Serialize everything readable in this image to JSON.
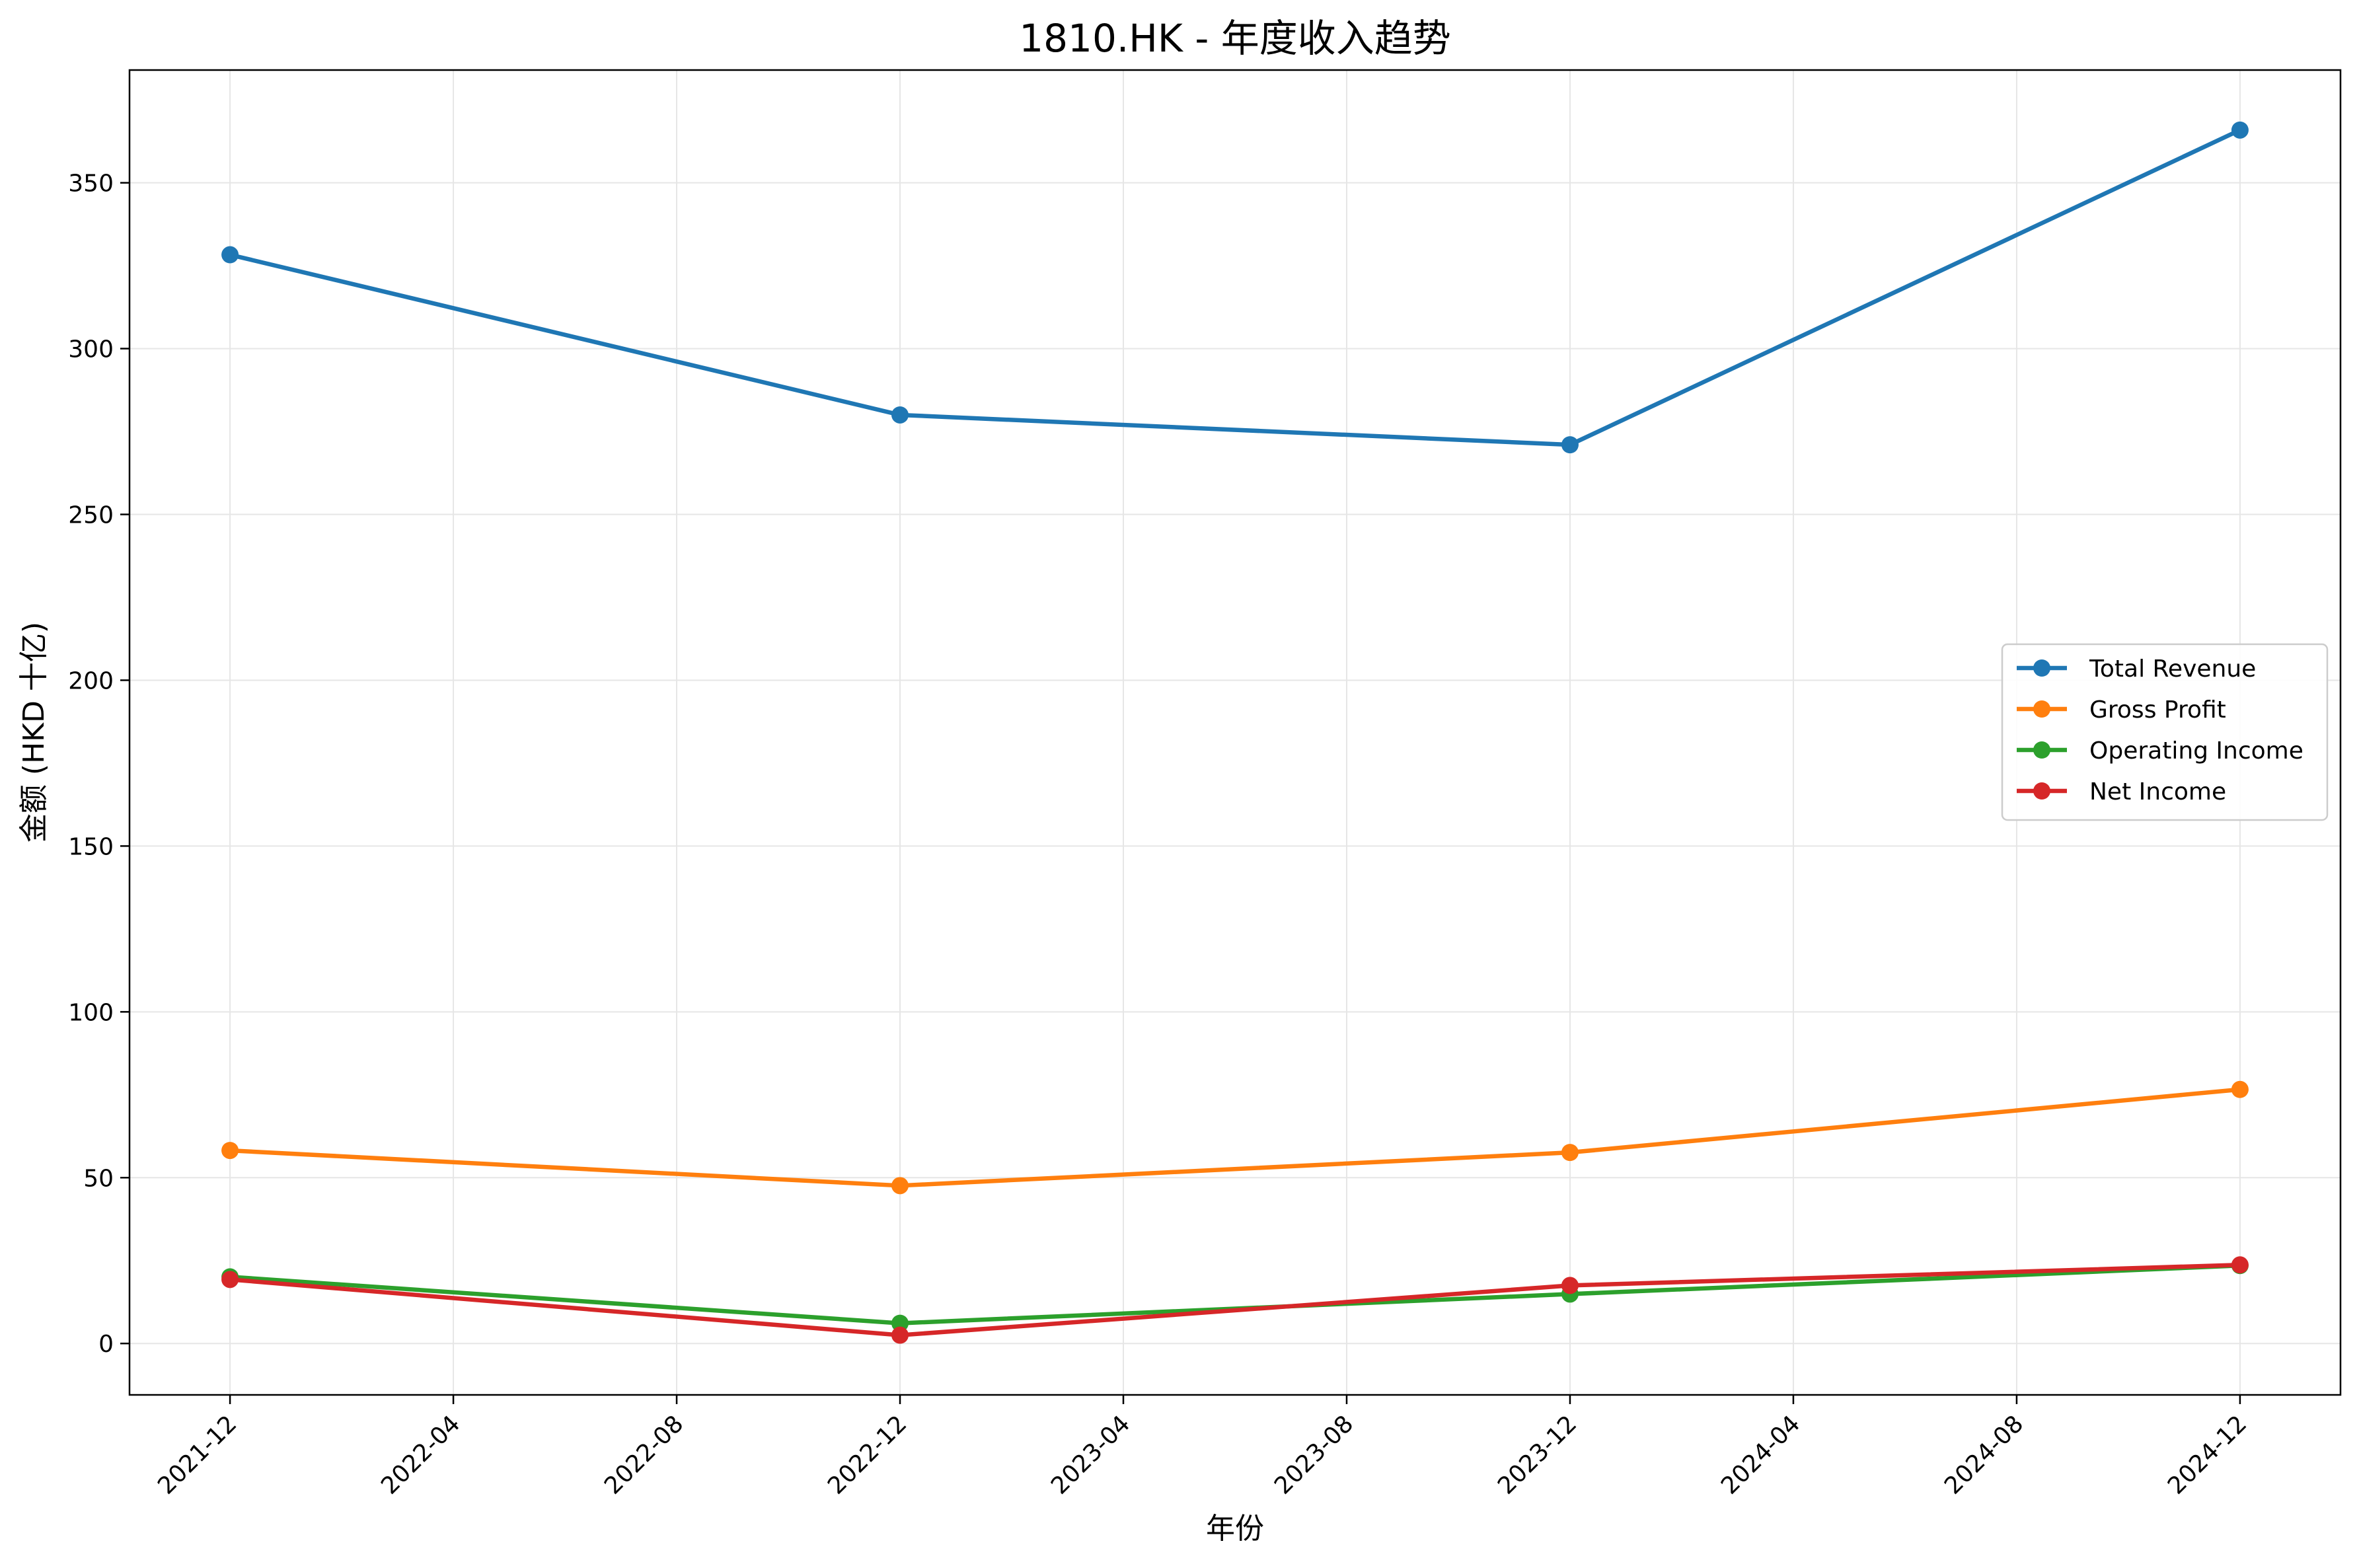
{
  "chart_data": {
    "type": "line",
    "title": "1810.HK - 年度收入趋势",
    "xlabel": "年份",
    "ylabel": "金额 (HKD 十亿)",
    "x": [
      "2021-12",
      "2022-12",
      "2023-12",
      "2024-12"
    ],
    "x_ticks": [
      "2021-12",
      "2022-04",
      "2022-08",
      "2022-12",
      "2023-04",
      "2023-08",
      "2023-12",
      "2024-04",
      "2024-08",
      "2024-12"
    ],
    "y_ticks": [
      0,
      50,
      100,
      150,
      200,
      250,
      300,
      350
    ],
    "ylim": [
      -15.5,
      384
    ],
    "grid": true,
    "legend_position": "center-right",
    "series": [
      {
        "name": "Total Revenue",
        "color": "#1f77b4",
        "values": [
          328.3,
          280.0,
          271.0,
          365.9
        ]
      },
      {
        "name": "Gross Profit",
        "color": "#ff7f0e",
        "values": [
          58.2,
          47.6,
          57.6,
          76.6
        ]
      },
      {
        "name": "Operating Income",
        "color": "#2ca02c",
        "values": [
          20.1,
          6.1,
          14.9,
          23.5
        ]
      },
      {
        "name": "Net Income",
        "color": "#d62728",
        "values": [
          19.3,
          2.5,
          17.5,
          23.7
        ]
      }
    ]
  }
}
